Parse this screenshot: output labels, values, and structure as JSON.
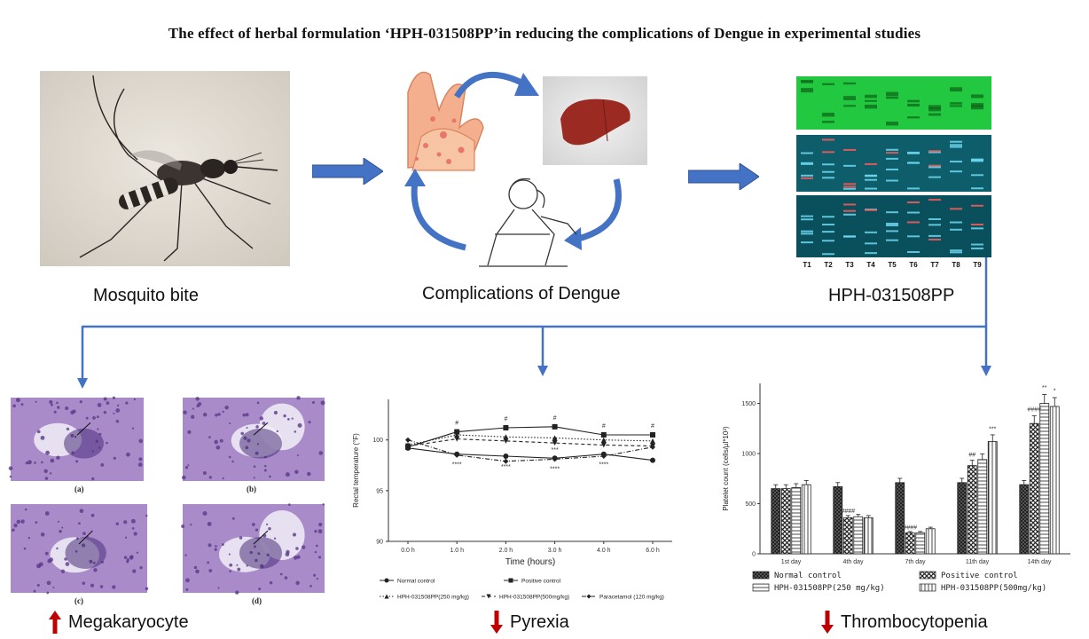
{
  "title": "The effect of herbal formulation ‘HPH-031508PP’in reducing the complications of Dengue in experimental studies",
  "captions": {
    "mosquito": "Mosquito bite",
    "complications": "Complications of Dengue",
    "hph": "HPH-031508PP",
    "megakaryocyte": "Megakaryocyte",
    "pyrexia": "Pyrexia",
    "thrombocytopenia": "Thrombocytopenia"
  },
  "tlc": {
    "lanes": [
      "T1",
      "T2",
      "T3",
      "T4",
      "T5",
      "T6",
      "T7",
      "T8",
      "T9"
    ]
  },
  "micrographs": {
    "labels": [
      "(a)",
      "(b)",
      "(c)",
      "(d)"
    ]
  },
  "colors": {
    "arrow_blue": "#4472c4",
    "indicator_red": "#c00000",
    "micrograph_purple": "#a98bc9",
    "tlc_green": "#22c840",
    "tlc_teal": "#0d5d6b"
  },
  "chart_data": [
    {
      "type": "line",
      "ylabel": "Rectal temperature (°F)",
      "xlabel": "Time (hours)",
      "x": [
        "0.0 h",
        "1.0 h",
        "2.0 h",
        "3.0 h",
        "4.0 h",
        "6.0 h"
      ],
      "ylim": [
        90,
        104
      ],
      "yticks": [
        90,
        95,
        100
      ],
      "series": [
        {
          "name": "Normal control",
          "marker": "circle",
          "style": "solid",
          "values": [
            99.2,
            98.6,
            98.4,
            98.2,
            98.6,
            98.0
          ]
        },
        {
          "name": "Positive control",
          "marker": "square",
          "style": "solid",
          "values": [
            99.3,
            100.8,
            101.2,
            101.3,
            100.5,
            100.5
          ]
        },
        {
          "name": "HPH-031508PP(250 mg/kg)",
          "marker": "triangle-up",
          "style": "dotted",
          "values": [
            99.5,
            100.5,
            100.3,
            100.2,
            100.0,
            99.9
          ]
        },
        {
          "name": "HPH-031508PP(500mg/kg)",
          "marker": "triangle-down",
          "style": "dashed",
          "values": [
            99.4,
            100.1,
            99.9,
            99.7,
            99.5,
            99.4
          ]
        },
        {
          "name": "Paracetamol (120 mg/kg)",
          "marker": "diamond",
          "style": "dashdot",
          "values": [
            100.0,
            98.5,
            97.9,
            98.1,
            98.4,
            99.3
          ]
        }
      ],
      "annotations": [
        {
          "x": "1.0 h",
          "text": "#"
        },
        {
          "x": "2.0 h",
          "text": "#"
        },
        {
          "x": "3.0 h",
          "text": "#"
        },
        {
          "x": "4.0 h",
          "text": "#"
        },
        {
          "x": "6.0 h",
          "text": "#"
        },
        {
          "x": "1.0 h",
          "text": "****"
        },
        {
          "x": "2.0 h",
          "text": "****"
        },
        {
          "x": "3.0 h",
          "text": "****"
        },
        {
          "x": "4.0 h",
          "text": "****"
        },
        {
          "x": "3.0 h",
          "text": "***"
        }
      ],
      "legend": "bottom"
    },
    {
      "type": "bar",
      "ylabel": "Platelet count (cells/µl*10³)",
      "categories": [
        "1st day",
        "4th day",
        "7th day",
        "11th day",
        "14th day"
      ],
      "ylim": [
        0,
        1700
      ],
      "yticks": [
        0,
        500,
        1000,
        1500
      ],
      "series": [
        {
          "name": "Normal control",
          "pattern": "dark-check",
          "values": [
            650,
            670,
            710,
            710,
            690
          ]
        },
        {
          "name": "Positive control",
          "pattern": "lattice",
          "values": [
            650,
            360,
            210,
            880,
            1300
          ]
        },
        {
          "name": "HPH-031508PP(250 mg/kg)",
          "pattern": "horizontal",
          "values": [
            660,
            370,
            210,
            940,
            1500
          ]
        },
        {
          "name": "HPH-031508PP(500mg/kg)",
          "pattern": "vertical",
          "values": [
            690,
            360,
            250,
            1120,
            1470
          ]
        }
      ],
      "annotations": [
        {
          "x": "4th day",
          "text": "####"
        },
        {
          "x": "7th day",
          "text": "####"
        },
        {
          "x": "11th day",
          "text": "##"
        },
        {
          "x": "11th day",
          "text": "***"
        },
        {
          "x": "14th day",
          "text": "####"
        },
        {
          "x": "14th day",
          "text": "**"
        },
        {
          "x": "14th day",
          "text": "*"
        }
      ],
      "legend": "bottom"
    }
  ]
}
